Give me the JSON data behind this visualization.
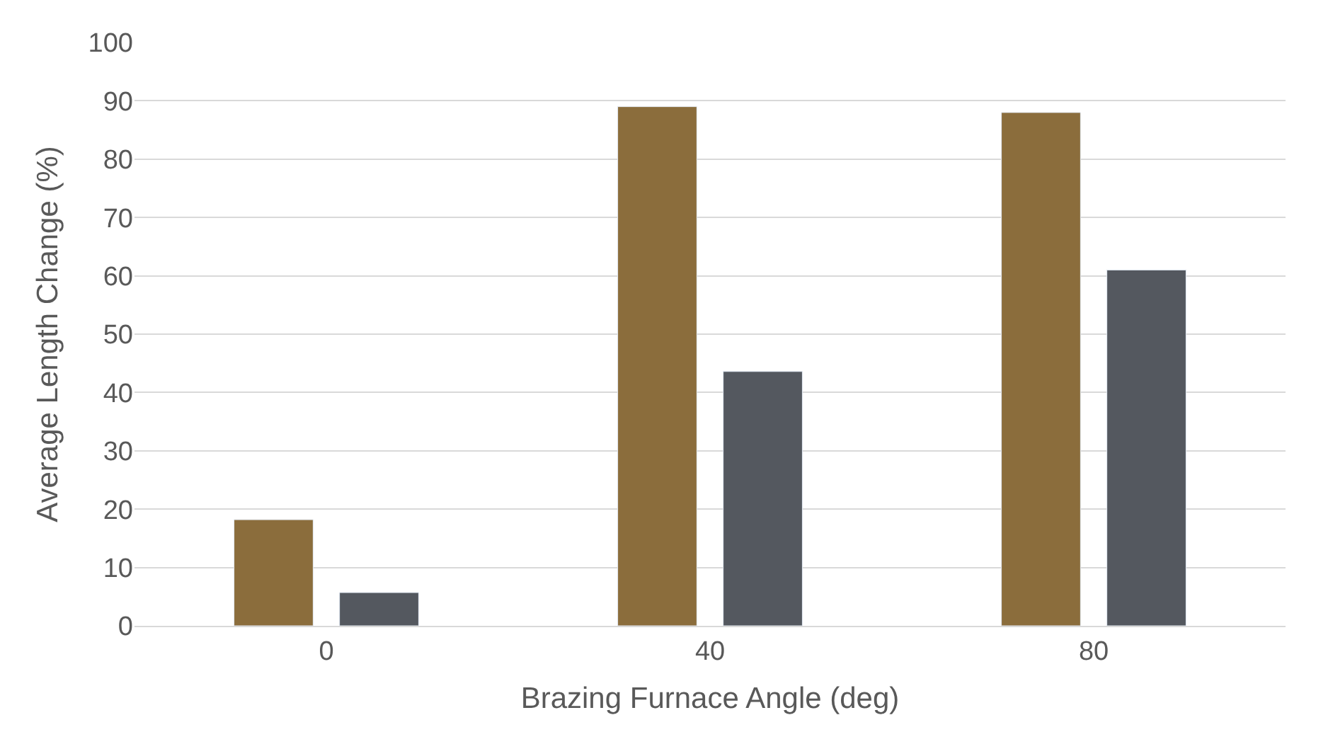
{
  "chart_data": {
    "type": "bar",
    "xlabel": "Brazing Furnace Angle (deg)",
    "ylabel": "Average Length Change (%)",
    "categories": [
      "0",
      "40",
      "80"
    ],
    "series": [
      {
        "color": "#8b6d3c",
        "values": [
          18.2,
          89.0,
          88.0
        ]
      },
      {
        "color": "#54585f",
        "values": [
          5.7,
          43.6,
          61.0
        ]
      }
    ],
    "ylim": [
      0,
      100
    ],
    "yticks": [
      0,
      10,
      20,
      30,
      40,
      50,
      60,
      70,
      80,
      90,
      100
    ],
    "grid": "y"
  }
}
